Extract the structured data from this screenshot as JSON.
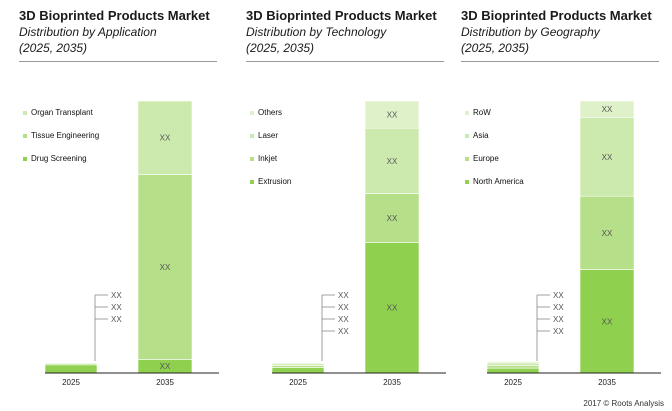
{
  "colors": {
    "segment": [
      "#8fd14f",
      "#b5df88",
      "#cdeaae",
      "#dff1c8"
    ],
    "axis": "#222222",
    "bracket": "#888888",
    "label": "#555555"
  },
  "chart_data": [
    {
      "type": "bar",
      "title": "3D Bioprinted Products Market",
      "subtitle": "Distribution by Application",
      "period": "(2025, 2035)",
      "categories": [
        "2025",
        "2035"
      ],
      "series": [
        {
          "name": "Drug Screening",
          "values": [
            3,
            5
          ]
        },
        {
          "name": "Tissue Engineering",
          "values": [
            0.5,
            68
          ]
        },
        {
          "name": "Organ Transplant",
          "values": [
            0.3,
            27
          ]
        }
      ],
      "data_label": "XX",
      "stacked": true,
      "ylim": [
        0,
        100
      ],
      "legend_placement": "top-left",
      "grid": false
    },
    {
      "type": "bar",
      "title": "3D Bioprinted Products Market",
      "subtitle": "Distribution by Technology",
      "period": "(2025, 2035)",
      "categories": [
        "2025",
        "2035"
      ],
      "series": [
        {
          "name": "Extrusion",
          "values": [
            2,
            48
          ]
        },
        {
          "name": "Inkjet",
          "values": [
            0.8,
            18
          ]
        },
        {
          "name": "Laser",
          "values": [
            0.6,
            24
          ]
        },
        {
          "name": "Others",
          "values": [
            0.4,
            10
          ]
        }
      ],
      "data_label": "XX",
      "stacked": true,
      "ylim": [
        0,
        100
      ],
      "legend_placement": "top-left",
      "grid": false
    },
    {
      "type": "bar",
      "title": "3D Bioprinted Products Market",
      "subtitle": "Distribution by Geography",
      "period": "(2025, 2035)",
      "categories": [
        "2025",
        "2035"
      ],
      "series": [
        {
          "name": "North America",
          "values": [
            1.8,
            38
          ]
        },
        {
          "name": "Europe",
          "values": [
            1.0,
            27
          ]
        },
        {
          "name": "Asia",
          "values": [
            0.9,
            29
          ]
        },
        {
          "name": "RoW",
          "values": [
            0.5,
            6
          ]
        }
      ],
      "data_label": "XX",
      "stacked": true,
      "ylim": [
        0,
        100
      ],
      "legend_placement": "top-left",
      "grid": false
    }
  ],
  "footer": "2017 © Roots Analysis"
}
